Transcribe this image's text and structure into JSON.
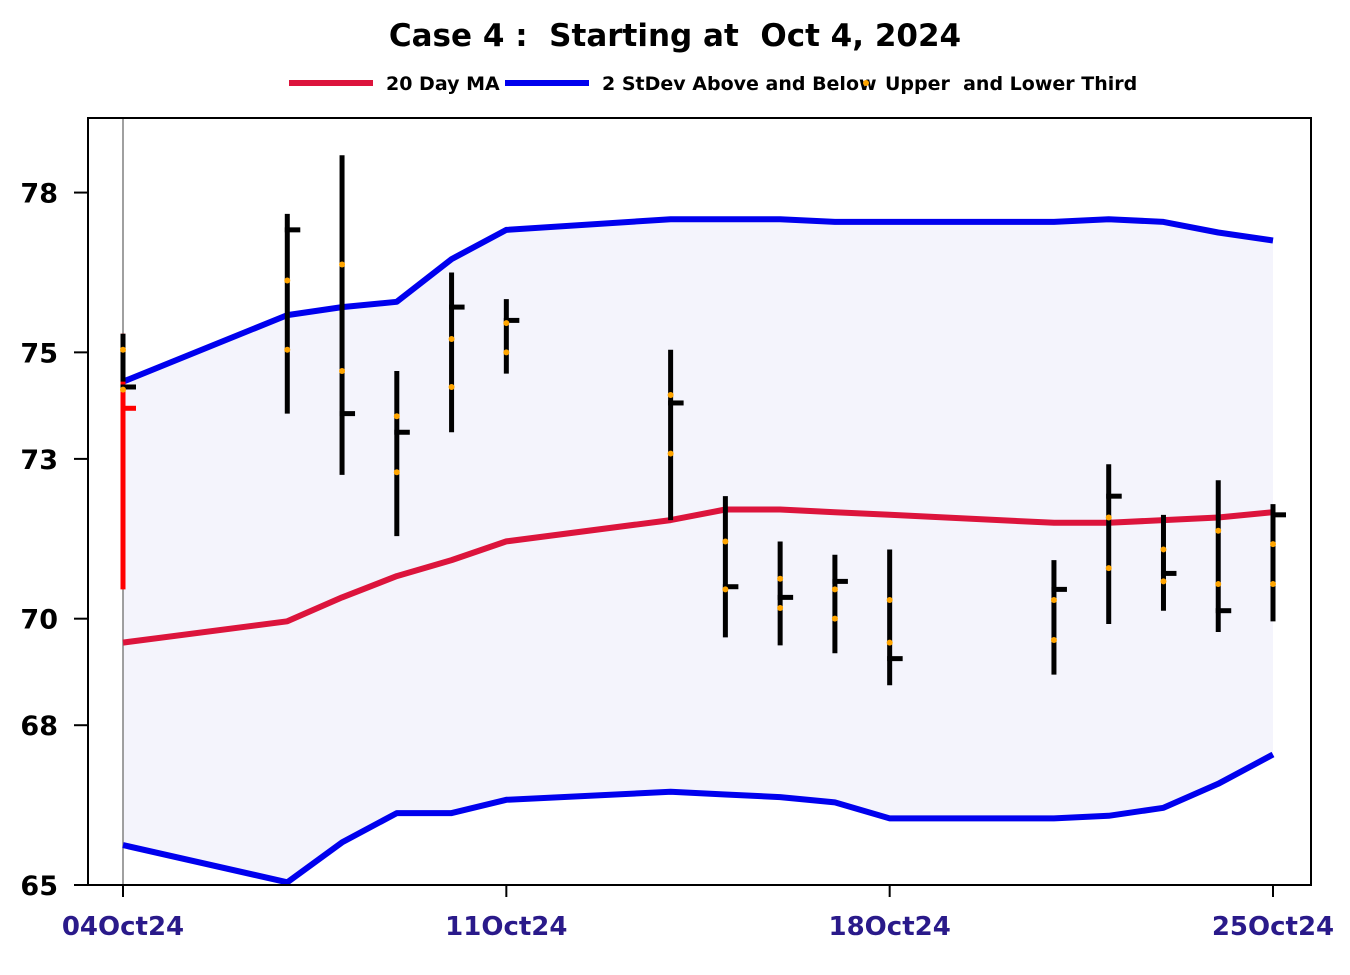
{
  "chart_data": {
    "type": "ohlc",
    "title": "Case 4 :  Starting at  Oct 4, 2024",
    "xlabel": "",
    "ylabel": "",
    "ylim": [
      65,
      79.4
    ],
    "yticks": [
      65,
      68,
      70,
      73,
      75,
      78
    ],
    "xticks": [
      {
        "label": "04Oct24",
        "day": 4
      },
      {
        "label": "11Oct24",
        "day": 11
      },
      {
        "label": "18Oct24",
        "day": 18
      },
      {
        "label": "25Oct24",
        "day": 25
      }
    ],
    "legend": {
      "placement": "top-center",
      "entries": [
        {
          "label": "20 Day MA",
          "color": "#dc143c",
          "kind": "line"
        },
        {
          "label": "2 StDev Above and Below",
          "color": "#0000ee",
          "kind": "line"
        },
        {
          "label": "Upper  and Lower Third",
          "color": "#ffa500",
          "kind": "dot"
        }
      ]
    },
    "colors": {
      "ma": "#dc143c",
      "band": "#0000ee",
      "band_fill": "#f4f4fc",
      "bar": "#000000",
      "first_bar": "#ff0000",
      "thirds": "#ffa500",
      "start_line": "#808080"
    },
    "ma_series": [
      {
        "day": 4,
        "value": 69.55
      },
      {
        "day": 7,
        "value": 69.95
      },
      {
        "day": 8,
        "value": 70.4
      },
      {
        "day": 9,
        "value": 70.8
      },
      {
        "day": 10,
        "value": 71.1
      },
      {
        "day": 11,
        "value": 71.45
      },
      {
        "day": 14,
        "value": 71.85
      },
      {
        "day": 15,
        "value": 72.05
      },
      {
        "day": 16,
        "value": 72.05
      },
      {
        "day": 17,
        "value": 72.0
      },
      {
        "day": 18,
        "value": 71.95
      },
      {
        "day": 21,
        "value": 71.8
      },
      {
        "day": 22,
        "value": 71.8
      },
      {
        "day": 23,
        "value": 71.85
      },
      {
        "day": 24,
        "value": 71.9
      },
      {
        "day": 25,
        "value": 72.0
      }
    ],
    "upper_band": [
      {
        "day": 4,
        "value": 74.45
      },
      {
        "day": 7,
        "value": 75.7
      },
      {
        "day": 8,
        "value": 75.85
      },
      {
        "day": 9,
        "value": 75.95
      },
      {
        "day": 10,
        "value": 76.75
      },
      {
        "day": 11,
        "value": 77.3
      },
      {
        "day": 14,
        "value": 77.5
      },
      {
        "day": 15,
        "value": 77.5
      },
      {
        "day": 16,
        "value": 77.5
      },
      {
        "day": 17,
        "value": 77.45
      },
      {
        "day": 18,
        "value": 77.45
      },
      {
        "day": 21,
        "value": 77.45
      },
      {
        "day": 22,
        "value": 77.5
      },
      {
        "day": 23,
        "value": 77.45
      },
      {
        "day": 24,
        "value": 77.25
      },
      {
        "day": 25,
        "value": 77.1
      }
    ],
    "lower_band": [
      {
        "day": 4,
        "value": 65.75
      },
      {
        "day": 7,
        "value": 65.05
      },
      {
        "day": 8,
        "value": 65.8
      },
      {
        "day": 9,
        "value": 66.35
      },
      {
        "day": 10,
        "value": 66.35
      },
      {
        "day": 11,
        "value": 66.6
      },
      {
        "day": 14,
        "value": 66.75
      },
      {
        "day": 15,
        "value": 66.7
      },
      {
        "day": 16,
        "value": 66.65
      },
      {
        "day": 17,
        "value": 66.55
      },
      {
        "day": 18,
        "value": 66.25
      },
      {
        "day": 21,
        "value": 66.25
      },
      {
        "day": 22,
        "value": 66.3
      },
      {
        "day": 23,
        "value": 66.45
      },
      {
        "day": 24,
        "value": 66.9
      },
      {
        "day": 25,
        "value": 67.45
      }
    ],
    "ohlc": [
      {
        "day": 4,
        "high": 75.35,
        "low": 70.55,
        "close": 73.95,
        "upper_third": 75.05,
        "lower_third": 74.3
      },
      {
        "day": 7,
        "high": 77.6,
        "low": 73.85,
        "close": 77.3,
        "upper_third": 76.35,
        "lower_third": 75.05
      },
      {
        "day": 8,
        "high": 78.7,
        "low": 72.7,
        "close": 73.85,
        "upper_third": 76.65,
        "lower_third": 74.65
      },
      {
        "day": 9,
        "high": 74.65,
        "low": 71.55,
        "close": 73.5,
        "upper_third": 73.8,
        "lower_third": 72.75
      },
      {
        "day": 10,
        "high": 76.5,
        "low": 73.5,
        "close": 75.85,
        "upper_third": 75.25,
        "lower_third": 74.35
      },
      {
        "day": 11,
        "high": 76.0,
        "low": 74.6,
        "close": 75.6,
        "upper_third": 75.55,
        "lower_third": 75.0
      },
      {
        "day": 14,
        "high": 75.05,
        "low": 71.85,
        "close": 74.05,
        "upper_third": 74.2,
        "lower_third": 73.1
      },
      {
        "day": 15,
        "high": 72.3,
        "low": 69.65,
        "close": 70.6,
        "upper_third": 71.45,
        "lower_third": 70.55
      },
      {
        "day": 16,
        "high": 71.45,
        "low": 69.5,
        "close": 70.4,
        "upper_third": 70.75,
        "lower_third": 70.2
      },
      {
        "day": 17,
        "high": 71.2,
        "low": 69.35,
        "close": 70.7,
        "upper_third": 70.55,
        "lower_third": 70.0
      },
      {
        "day": 18,
        "high": 71.3,
        "low": 68.75,
        "close": 69.25,
        "upper_third": 70.35,
        "lower_third": 69.55
      },
      {
        "day": 21,
        "high": 71.1,
        "low": 68.95,
        "close": 70.55,
        "upper_third": 70.35,
        "lower_third": 69.6
      },
      {
        "day": 22,
        "high": 72.9,
        "low": 69.9,
        "close": 72.3,
        "upper_third": 71.9,
        "lower_third": 70.95
      },
      {
        "day": 23,
        "high": 71.95,
        "low": 70.15,
        "close": 70.85,
        "upper_third": 71.3,
        "lower_third": 70.7
      },
      {
        "day": 24,
        "high": 72.6,
        "low": 69.75,
        "close": 70.15,
        "upper_third": 71.65,
        "lower_third": 70.65
      },
      {
        "day": 25,
        "high": 72.15,
        "low": 69.95,
        "close": 71.95,
        "upper_third": 71.4,
        "lower_third": 70.65
      }
    ]
  }
}
